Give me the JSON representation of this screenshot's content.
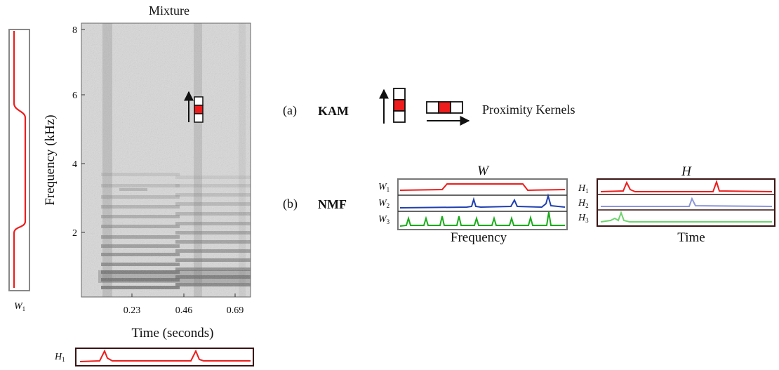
{
  "spectrogram": {
    "title": "Mixture",
    "xlabel": "Time (seconds)",
    "ylabel": "Frequency (kHz)",
    "x_ticks": [
      "0.23",
      "0.46",
      "0.69"
    ],
    "y_ticks": [
      "8",
      "6",
      "4",
      "2"
    ],
    "colors": {
      "background": "#dcdcdc",
      "harmonic": "#6f6f6f",
      "kernel_center": "#ee1c1c"
    }
  },
  "w1_plot": {
    "label_main": "W",
    "label_sub": "1",
    "color": "#ee1c1c"
  },
  "h1_plot": {
    "label_main": "H",
    "label_sub": "1",
    "color": "#ee1c1c"
  },
  "kam_row": {
    "tag": "(a)",
    "name": "KAM",
    "caption": "Proximity Kernels"
  },
  "nmf_row": {
    "tag": "(b)",
    "name": "NMF",
    "w_panel": {
      "title": "W",
      "xlabel": "Frequency",
      "rows": [
        {
          "label_main": "W",
          "label_sub": "1",
          "color": "#ee1c1c"
        },
        {
          "label_main": "W",
          "label_sub": "2",
          "color": "#1f3fb0"
        },
        {
          "label_main": "W",
          "label_sub": "3",
          "color": "#1aaa1a"
        }
      ]
    },
    "h_panel": {
      "title": "H",
      "xlabel": "Time",
      "rows": [
        {
          "label_main": "H",
          "label_sub": "1",
          "color": "#ee1c1c"
        },
        {
          "label_main": "H",
          "label_sub": "2",
          "color": "#8c96dc"
        },
        {
          "label_main": "H",
          "label_sub": "3",
          "color": "#6fd46f"
        }
      ]
    }
  }
}
